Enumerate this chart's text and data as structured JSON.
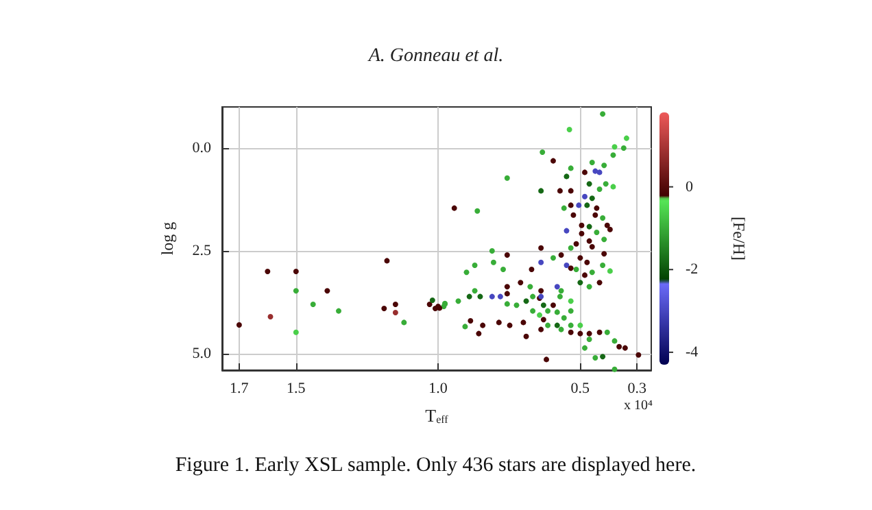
{
  "chart_data": {
    "type": "scatter",
    "xlabel": "T$_{eff}$",
    "ylabel": "log g",
    "clabel": "[Fe/H]",
    "annotations": [
      "A. Gonneau et al.",
      "x 10⁴",
      "Figure 1. Early XSL sample. Only 436 stars are displayed here."
    ],
    "xlim": [
      1.76,
      0.25
    ],
    "xticks": [
      1.7,
      1.5,
      {
        "value": 1.0,
        "label": "1.0"
      },
      {
        "value": 0.5,
        "label": "0.5"
      },
      0.3
    ],
    "ylim": [
      5.4,
      -1.0
    ],
    "yticks": [
      {
        "value": 0,
        "label": "0.0"
      },
      2.5,
      {
        "value": 5,
        "label": "5.0"
      }
    ],
    "clim": [
      -4.3,
      1.8
    ],
    "cticks": [
      -4,
      -2,
      0
    ],
    "grid": true,
    "marker": "circle",
    "x": [
      1.7,
      1.6,
      1.59,
      1.5,
      1.5,
      1.5,
      1.44,
      1.39,
      1.35,
      1.18,
      1.19,
      1.15,
      1.15,
      1.12,
      1.03,
      1.02,
      1.01,
      0.98,
      0.976,
      0.943,
      0.862,
      0.757,
      0.638,
      0.633,
      0.595,
      0.538,
      0.421,
      0.337,
      0.347,
      0.384,
      0.432,
      0.447,
      0.484,
      0.468,
      0.484,
      0.458,
      0.432,
      0.41,
      0.384,
      0.505,
      0.476,
      0.442,
      0.447,
      0.421,
      0.405,
      0.468,
      0.495,
      0.524,
      0.533,
      0.548,
      0.557,
      0.495,
      0.468,
      0.442,
      0.416,
      0.395,
      0.514,
      0.533,
      0.458,
      0.567,
      0.548,
      0.5,
      0.476,
      0.533,
      0.595,
      0.581,
      0.567,
      0.514,
      0.484,
      0.458,
      0.395,
      0.638,
      0.638,
      0.671,
      0.757,
      0.81,
      0.805,
      0.771,
      0.871,
      0.9,
      0.871,
      0.852,
      0.89,
      0.929,
      0.976,
      0.995,
      0.81,
      0.781,
      0.757,
      0.757,
      0.724,
      0.69,
      0.667,
      0.643,
      0.638,
      0.629,
      0.614,
      0.595,
      0.581,
      0.643,
      0.667,
      0.629,
      0.614,
      0.638,
      0.7,
      0.748,
      0.786,
      0.843,
      0.857,
      0.886,
      0.905,
      1.0,
      0.69,
      0.619,
      0.567,
      0.533,
      0.5,
      0.468,
      0.432,
      0.405,
      0.533,
      0.5,
      0.468,
      0.484,
      0.447,
      0.421,
      0.379,
      0.363,
      0.342,
      0.379,
      0.295,
      0.581,
      0.557,
      0.533,
      0.638,
      0.571,
      0.533,
      0.71,
      0.757,
      0.676,
      0.5,
      0.468,
      0.432,
      0.416,
      0.421,
      0.533,
      0.548,
      0.416,
      0.458,
      0.379,
      0.533,
      0.571
    ],
    "values": [
      4.3,
      3.0,
      4.1,
      3.0,
      3.47,
      4.48,
      3.8,
      3.47,
      3.96,
      2.74,
      3.9,
      3.8,
      4.0,
      4.24,
      3.8,
      3.7,
      3.9,
      3.85,
      3.78,
      1.46,
      1.53,
      0.73,
      1.04,
      0.1,
      0.31,
      -0.45,
      -0.83,
      -0.24,
      0.0,
      0.17,
      0.59,
      0.56,
      0.59,
      0.87,
      1.18,
      1.22,
      1.0,
      0.87,
      0.94,
      1.39,
      1.39,
      1.46,
      1.63,
      1.7,
      1.88,
      1.91,
      1.88,
      1.63,
      1.39,
      2.01,
      1.46,
      2.08,
      2.26,
      2.05,
      2.22,
      1.98,
      2.33,
      2.43,
      2.4,
      2.6,
      2.85,
      2.67,
      2.78,
      2.92,
      2.67,
      3.37,
      3.47,
      2.95,
      3.09,
      3.02,
      2.99,
      2.78,
      2.43,
      2.95,
      2.6,
      2.5,
      2.78,
      2.95,
      2.85,
      3.02,
      3.47,
      3.61,
      3.61,
      3.72,
      3.79,
      3.89,
      3.61,
      3.61,
      3.54,
      3.79,
      3.82,
      3.72,
      3.61,
      3.65,
      3.61,
      3.82,
      3.96,
      3.82,
      3.99,
      4.06,
      3.96,
      4.17,
      4.31,
      4.41,
      4.24,
      4.31,
      4.24,
      4.31,
      4.51,
      4.2,
      4.34,
      3.85,
      4.58,
      5.14,
      4.41,
      4.48,
      4.51,
      4.51,
      4.48,
      4.48,
      4.31,
      4.31,
      4.65,
      4.86,
      5.1,
      5.07,
      4.69,
      4.83,
      4.86,
      5.38,
      5.03,
      4.31,
      4.13,
      3.96,
      3.47,
      3.61,
      3.72,
      3.27,
      3.37,
      3.37,
      3.27,
      3.37,
      3.27,
      2.57,
      2.85,
      0.49,
      0.69,
      0.42,
      0.35,
      -0.03,
      1.04,
      1.04
    ],
    "cvalues": [
      -0.1,
      -0.1,
      0.8,
      -0.1,
      -1.0,
      -0.6,
      -1.0,
      -0.1,
      -1.0,
      -0.1,
      -0.1,
      -0.1,
      0.8,
      -1.0,
      -0.1,
      -1.8,
      -0.1,
      -1.0,
      -1.0,
      -0.1,
      -1.0,
      -1.0,
      -1.8,
      -1.0,
      -0.1,
      -0.6,
      -1.0,
      -0.6,
      -1.0,
      -1.0,
      -3.0,
      -3.0,
      -0.1,
      -1.8,
      -3.0,
      -1.8,
      -1.0,
      -1.0,
      -0.6,
      -3.0,
      -1.8,
      -0.1,
      -0.1,
      -1.0,
      -0.1,
      -1.8,
      -0.1,
      -0.1,
      -0.1,
      -3.0,
      -1.0,
      -0.1,
      -0.1,
      -1.0,
      -1.0,
      -0.1,
      -0.1,
      -1.0,
      -0.1,
      -0.1,
      -3.0,
      -0.1,
      -0.1,
      -0.1,
      -1.0,
      -3.0,
      -1.0,
      -1.0,
      -0.1,
      -1.0,
      -0.6,
      -3.0,
      -0.1,
      -0.1,
      -0.1,
      -1.0,
      -1.0,
      -1.0,
      -1.0,
      -1.0,
      -1.0,
      -1.8,
      -1.8,
      -1.0,
      -1.0,
      -0.1,
      -3.0,
      -3.0,
      -0.1,
      -1.0,
      -1.0,
      -1.8,
      -1.0,
      -0.1,
      -3.0,
      -1.8,
      -1.0,
      -0.1,
      -1.0,
      -0.6,
      -1.0,
      -0.1,
      -1.0,
      -0.1,
      -0.1,
      -0.1,
      -0.1,
      -0.1,
      -0.1,
      -0.1,
      -1.0,
      -0.1,
      -0.1,
      -0.1,
      -1.0,
      -0.1,
      -0.1,
      -0.1,
      -0.1,
      -1.0,
      -1.0,
      -0.6,
      -1.0,
      -1.0,
      -1.0,
      -1.8,
      -1.0,
      -0.1,
      -0.1,
      -1.0,
      -0.1,
      -1.8,
      -1.0,
      -1.0,
      -0.1,
      -1.0,
      -0.6,
      -0.1,
      -0.1,
      -1.0,
      -1.8,
      -1.0,
      -0.1,
      -0.1,
      -1.0,
      -1.0,
      -1.8,
      -1.0,
      -1.0,
      -0.6,
      -0.1,
      -0.1
    ]
  }
}
